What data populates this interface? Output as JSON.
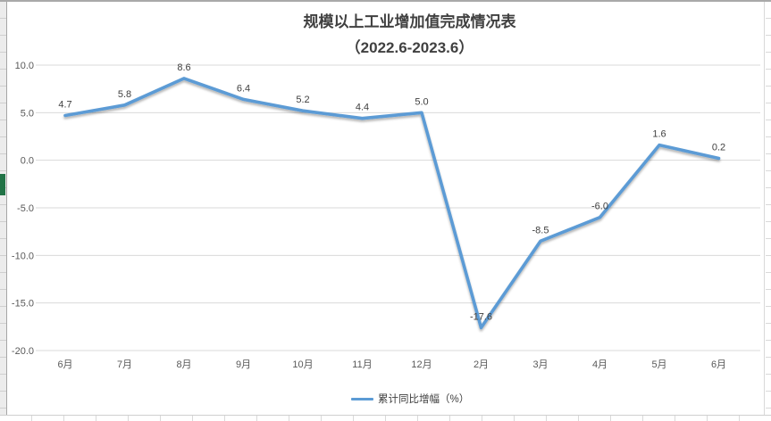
{
  "chart_data": {
    "type": "line",
    "title": "规模以上工业增加值完成情况表",
    "subtitle": "（2022.6-2023.6）",
    "categories": [
      "6月",
      "7月",
      "8月",
      "9月",
      "10月",
      "11月",
      "12月",
      "2月",
      "3月",
      "4月",
      "5月",
      "6月"
    ],
    "series": [
      {
        "name": "累计同比增幅（%）",
        "values": [
          4.7,
          5.8,
          8.6,
          6.4,
          5.2,
          4.4,
          5.0,
          -17.6,
          -8.5,
          -6.0,
          1.6,
          0.2
        ]
      }
    ],
    "data_labels": [
      "4.7",
      "5.8",
      "8.6",
      "6.4",
      "5.2",
      "4.4",
      "5.0",
      "-17.6",
      "-8.5",
      "-6.0",
      "1.6",
      "0.2"
    ],
    "yticks": [
      "10.0",
      "5.0",
      "0.0",
      "-5.0",
      "-10.0",
      "-15.0",
      "-20.0"
    ],
    "ylim": [
      -20,
      10
    ],
    "grid": true,
    "legend_position": "bottom",
    "xlabel": "",
    "ylabel": "",
    "line_color": "#5B9BD5",
    "gridline_color": "#D9D9D9",
    "axis_text_color": "#595959",
    "label_text_color": "#404040",
    "selection_marker_color": "#217346"
  }
}
